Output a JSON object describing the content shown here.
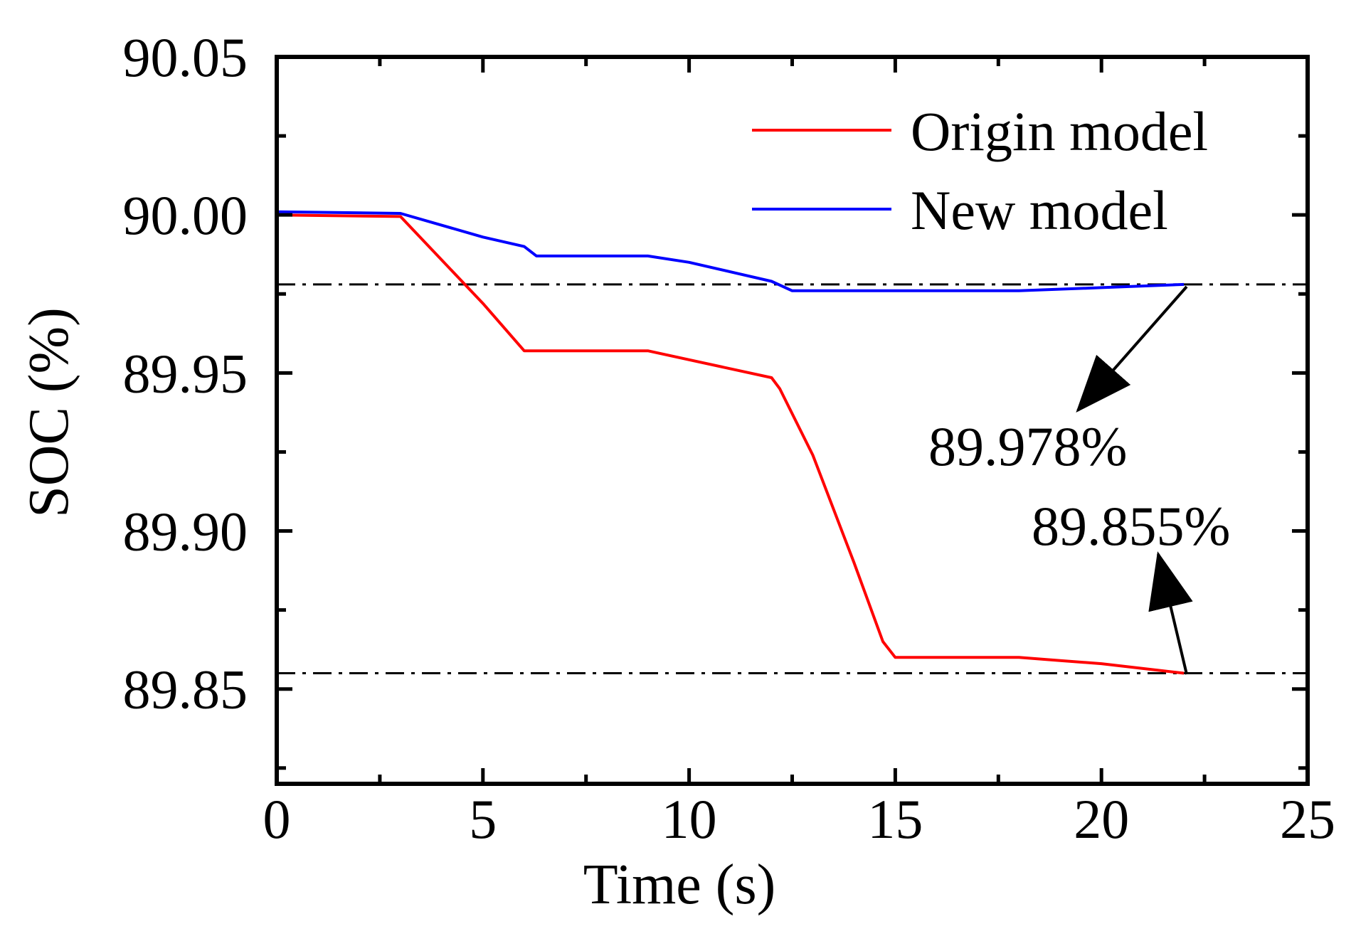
{
  "chart_data": {
    "type": "line",
    "title": "",
    "xlabel": "Time (s)",
    "ylabel": "SOC (%)",
    "xlim": [
      0,
      25
    ],
    "ylim": [
      89.82,
      90.05
    ],
    "xticks": [
      0,
      5,
      10,
      15,
      20,
      25
    ],
    "xtick_labels": [
      "0",
      "5",
      "10",
      "15",
      "20",
      "25"
    ],
    "yticks": [
      89.85,
      89.9,
      89.95,
      90.0,
      90.05
    ],
    "ytick_labels": [
      "89.85",
      "89.90",
      "89.95",
      "90.00",
      "90.05"
    ],
    "grid": false,
    "legend_position": "top-right",
    "series": [
      {
        "name": "Origin model",
        "color": "#ff0000",
        "x": [
          0,
          3,
          5,
          6,
          9,
          12,
          12.2,
          13,
          14,
          14.7,
          15,
          18,
          19,
          20,
          22
        ],
        "y": [
          90.0,
          89.9995,
          89.972,
          89.957,
          89.957,
          89.9485,
          89.945,
          89.924,
          89.89,
          89.865,
          89.86,
          89.86,
          89.859,
          89.858,
          89.855
        ]
      },
      {
        "name": "New model",
        "color": "#0000ff",
        "x": [
          0,
          3,
          5,
          6,
          6.3,
          9,
          10,
          12,
          12.5,
          15,
          18,
          20,
          22
        ],
        "y": [
          90.001,
          90.0005,
          89.993,
          89.99,
          89.987,
          89.987,
          89.985,
          89.979,
          89.976,
          89.976,
          89.976,
          89.977,
          89.978
        ]
      }
    ],
    "reference_lines": [
      {
        "y": 89.978,
        "style": "dash-dot",
        "color": "#000000"
      },
      {
        "y": 89.855,
        "style": "dash-dot",
        "color": "#000000"
      }
    ],
    "annotations": [
      {
        "text": "89.978%",
        "point": {
          "x": 22,
          "y": 89.978
        }
      },
      {
        "text": "89.855%",
        "point": {
          "x": 22,
          "y": 89.855
        }
      }
    ]
  }
}
